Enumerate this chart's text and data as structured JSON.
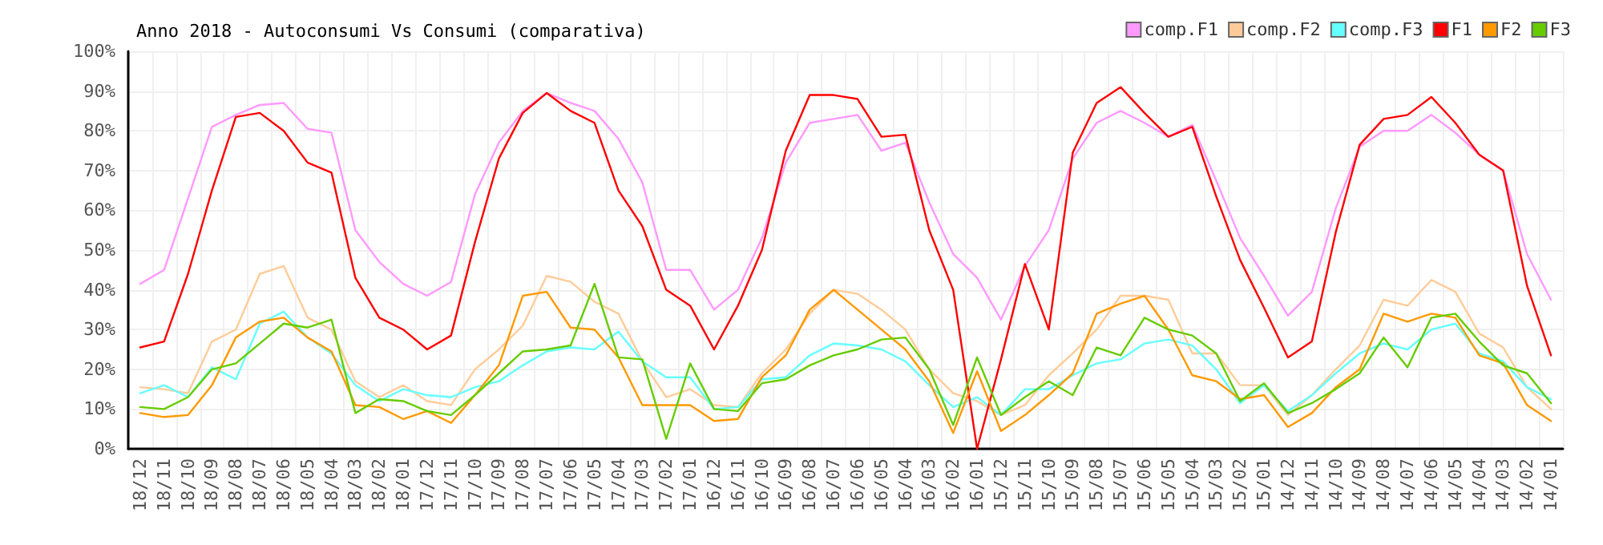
{
  "chart_data": {
    "type": "line",
    "title": "Anno 2018 - Autoconsumi Vs Consumi (comparativa)",
    "categories": [
      "18/12",
      "18/11",
      "18/10",
      "18/09",
      "18/08",
      "18/07",
      "18/06",
      "18/05",
      "18/04",
      "18/03",
      "18/02",
      "18/01",
      "17/12",
      "17/11",
      "17/10",
      "17/09",
      "17/08",
      "17/07",
      "17/06",
      "17/05",
      "17/04",
      "17/03",
      "17/02",
      "17/01",
      "16/12",
      "16/11",
      "16/10",
      "16/09",
      "16/08",
      "16/07",
      "16/06",
      "16/05",
      "16/04",
      "16/03",
      "16/02",
      "16/01",
      "15/12",
      "15/11",
      "15/10",
      "15/09",
      "15/08",
      "15/07",
      "15/06",
      "15/05",
      "15/04",
      "15/03",
      "15/02",
      "15/01",
      "14/12",
      "14/11",
      "14/10",
      "14/09",
      "14/08",
      "14/07",
      "14/06",
      "14/05",
      "14/04",
      "14/03",
      "14/02",
      "14/01"
    ],
    "series": [
      {
        "name": "comp.F1",
        "color": "#ff99ff",
        "values": [
          41.5,
          45,
          63,
          81,
          84,
          86.5,
          87,
          80.5,
          79.5,
          55,
          47,
          41.5,
          38.5,
          42,
          64,
          77,
          85,
          89.5,
          87,
          85,
          78,
          67,
          45,
          45,
          35,
          40,
          53,
          72,
          82,
          83,
          84,
          75,
          77,
          62,
          49,
          43,
          32.5,
          46,
          55,
          73,
          82,
          85,
          82,
          78.5,
          81.5,
          67.5,
          53,
          43.5,
          33.5,
          39.5,
          60.5,
          76,
          80,
          80,
          84,
          79.5,
          74,
          70,
          49,
          37.5
        ]
      },
      {
        "name": "comp.F2",
        "color": "#ffcc99",
        "values": [
          15.5,
          15,
          14,
          27,
          30,
          44,
          46,
          33,
          30,
          17,
          13,
          16,
          12,
          11,
          20,
          25,
          31,
          43.5,
          42,
          37,
          34,
          22,
          13,
          15,
          11,
          10.5,
          19,
          25,
          34,
          40,
          39,
          35,
          30,
          20,
          14,
          12,
          8.5,
          11,
          18.5,
          24,
          30,
          38.5,
          38.5,
          37.5,
          24,
          24,
          16,
          16,
          8.5,
          13.5,
          20,
          26,
          37.5,
          36,
          42.5,
          39.5,
          29,
          25.5,
          15.5,
          10
        ]
      },
      {
        "name": "comp.F3",
        "color": "#66ffff",
        "values": [
          14,
          16,
          13,
          20.5,
          17.5,
          31.5,
          34.5,
          28,
          24,
          16,
          12,
          15,
          13.5,
          13,
          15.5,
          17,
          21,
          24.5,
          25.5,
          25,
          29.5,
          22,
          18,
          18,
          10,
          10.5,
          17.5,
          18,
          23.5,
          26.5,
          26,
          25,
          22,
          16,
          10.5,
          13,
          8.5,
          15,
          15,
          18.5,
          21.5,
          22.5,
          26.5,
          27.5,
          26,
          20,
          11.5,
          16,
          9.5,
          13.5,
          19,
          24,
          26.5,
          25,
          30,
          31.5,
          24,
          22,
          15.5,
          12.5
        ]
      },
      {
        "name": "F1",
        "color": "#ff0000",
        "values": [
          25.5,
          27,
          44,
          65,
          83.5,
          84.5,
          80,
          72,
          69.5,
          43,
          33,
          30,
          25,
          28.5,
          52,
          73,
          84.5,
          89.5,
          85,
          82,
          65,
          56,
          40,
          36,
          25,
          36,
          50,
          75,
          89,
          89,
          88,
          78.5,
          79,
          55,
          40,
          0,
          22.5,
          46.5,
          30,
          74.5,
          87,
          91,
          84.5,
          78.5,
          81,
          63.5,
          47.5,
          35.5,
          23,
          27,
          54.5,
          76.5,
          83,
          84,
          88.5,
          82,
          74,
          70,
          41,
          23.5
        ]
      },
      {
        "name": "F2",
        "color": "#ff9900",
        "values": [
          9,
          8,
          8.5,
          16,
          28,
          32,
          33,
          28,
          24.5,
          11,
          10.5,
          7.5,
          9.5,
          6.5,
          13.5,
          21,
          38.5,
          39.5,
          30.5,
          30,
          23,
          11,
          11,
          11,
          7,
          7.5,
          18,
          23.5,
          35,
          40,
          35,
          30,
          25,
          17,
          4,
          19.5,
          4.5,
          8.5,
          13.5,
          19,
          34,
          36.5,
          38.5,
          30,
          18.5,
          17,
          12.5,
          13.5,
          5.5,
          9,
          15.5,
          20,
          34,
          32,
          34,
          33,
          23.5,
          21.5,
          11,
          7
        ]
      },
      {
        "name": "F3",
        "color": "#66cc00",
        "values": [
          10.5,
          10,
          13,
          20,
          21.5,
          26.5,
          31.5,
          30.5,
          32.5,
          9,
          12.5,
          12,
          9.5,
          8.5,
          13.5,
          19,
          24.5,
          25,
          26,
          41.5,
          23,
          22.5,
          2.5,
          21.5,
          10,
          9.5,
          16.5,
          17.5,
          21,
          23.5,
          25,
          27.5,
          28,
          20,
          6,
          23,
          8.5,
          13,
          17,
          13.5,
          25.5,
          23.5,
          33,
          30,
          28.5,
          24,
          12,
          16.5,
          9,
          11.5,
          15,
          19,
          28,
          20.5,
          33,
          34,
          27,
          21,
          19,
          11.5
        ]
      }
    ],
    "ylim": [
      0,
      100
    ],
    "yticks": [
      {
        "value": 0,
        "label": "0%"
      },
      {
        "value": 10,
        "label": "10%"
      },
      {
        "value": 20,
        "label": "20%"
      },
      {
        "value": 30,
        "label": "30%"
      },
      {
        "value": 40,
        "label": "40%"
      },
      {
        "value": 50,
        "label": "50%"
      },
      {
        "value": 60,
        "label": "60%"
      },
      {
        "value": 70,
        "label": "70%"
      },
      {
        "value": 80,
        "label": "80%"
      },
      {
        "value": 90,
        "label": "90%"
      },
      {
        "value": 100,
        "label": "100%"
      }
    ],
    "grid": true,
    "legend": "top right",
    "marker": "none",
    "line_style": "solid"
  }
}
